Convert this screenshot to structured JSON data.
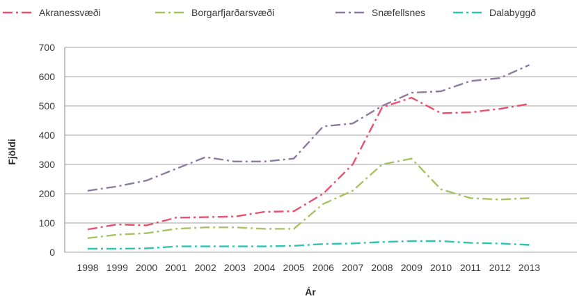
{
  "chart_data": {
    "type": "line",
    "title": "",
    "xlabel": "Ár",
    "ylabel": "Fjöldi",
    "x": [
      "1998",
      "1999",
      "2000",
      "2001",
      "2002",
      "2003",
      "2004",
      "2005",
      "2006",
      "2007",
      "2008",
      "2009",
      "2010",
      "2011",
      "2012",
      "2013"
    ],
    "yticks": [
      "0",
      "100",
      "200",
      "300",
      "400",
      "500",
      "600",
      "700"
    ],
    "ylim": [
      0,
      700
    ],
    "grid": true,
    "legend_position": "top",
    "series": [
      {
        "name": "Akranessvæði",
        "color": "#e8506e",
        "dash": "14,5,3,5",
        "values": [
          78,
          95,
          92,
          118,
          120,
          122,
          138,
          140,
          200,
          300,
          495,
          528,
          475,
          478,
          490,
          507
        ]
      },
      {
        "name": "Borgarfjarðarsvæði",
        "color": "#a8c262",
        "dash": "14,5,3,5",
        "values": [
          48,
          60,
          65,
          80,
          85,
          85,
          80,
          80,
          165,
          210,
          300,
          320,
          215,
          185,
          180,
          185
        ]
      },
      {
        "name": "Snæfellsnes",
        "color": "#8e7aa0",
        "dash": "14,5,3,5",
        "values": [
          210,
          225,
          245,
          285,
          325,
          310,
          310,
          320,
          430,
          440,
          500,
          545,
          550,
          585,
          595,
          640
        ]
      },
      {
        "name": "Dalabyggð",
        "color": "#2ec4b0",
        "dash": "14,5,3,5",
        "values": [
          12,
          12,
          13,
          20,
          20,
          20,
          20,
          22,
          28,
          30,
          35,
          38,
          38,
          32,
          30,
          25
        ]
      }
    ]
  }
}
